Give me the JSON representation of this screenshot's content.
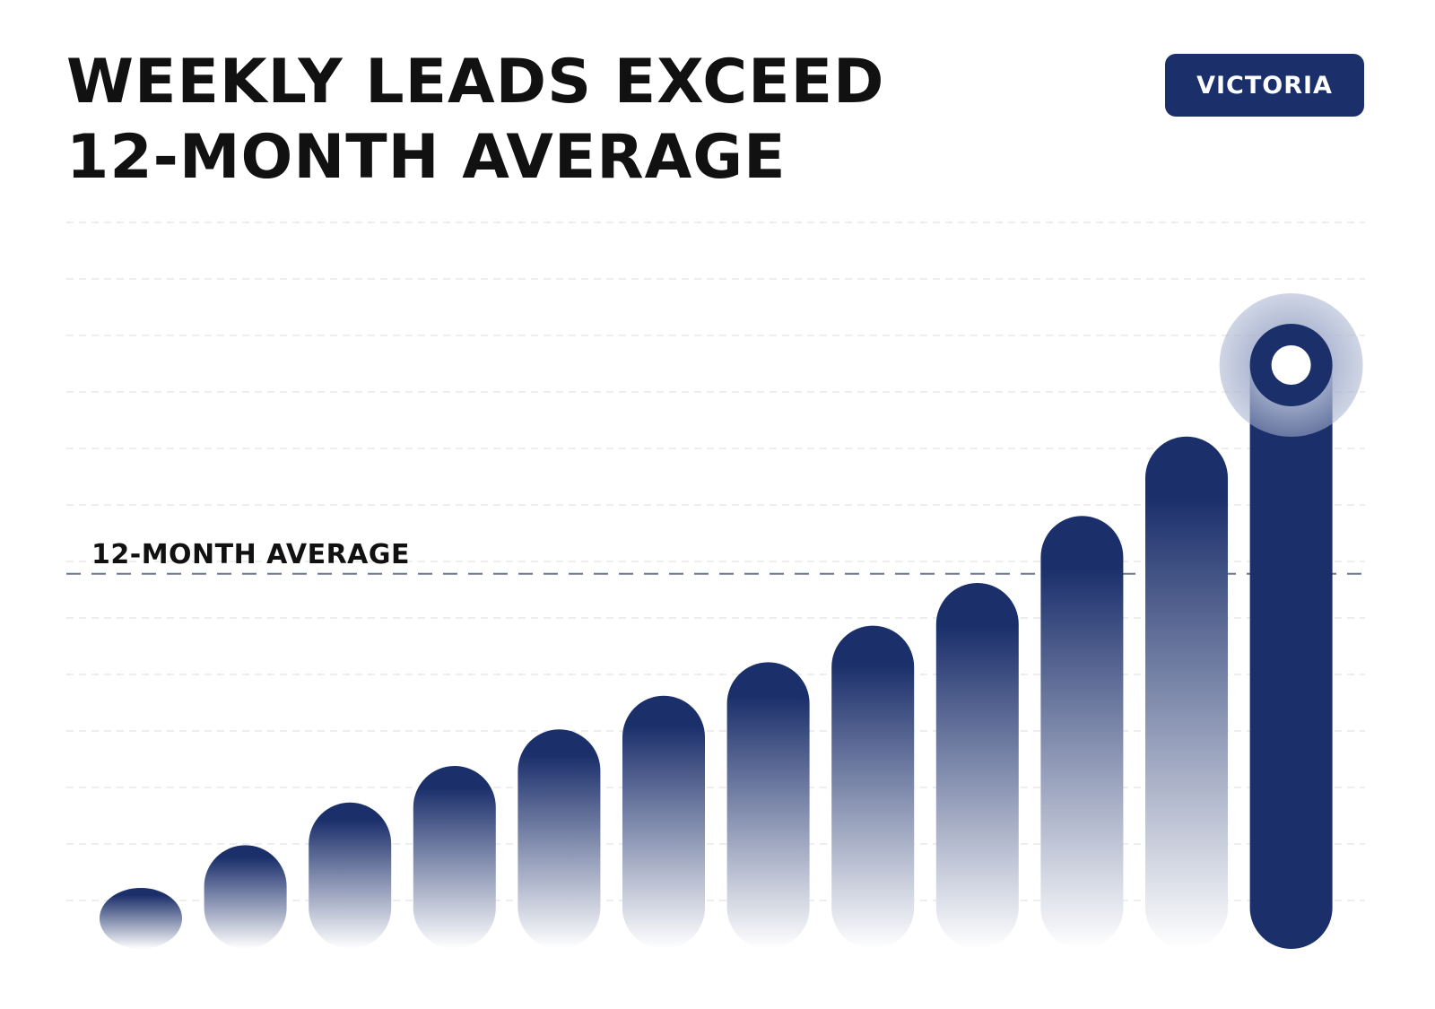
{
  "title_lines": [
    "WEEKLY LEADS EXCEED",
    "12-MONTH AVERAGE"
  ],
  "badge": {
    "label": "VICTORIA"
  },
  "colors": {
    "accent": "#1b2f6b",
    "bar_top": "#1b2f6b",
    "bar_bottom": "#ffffff",
    "grid": "#dddddd",
    "average_line": "#6b7791",
    "highlight_halo": "#a8b3cf"
  },
  "chart_data": {
    "type": "bar",
    "title": "WEEKLY LEADS EXCEED 12-MONTH AVERAGE",
    "categories": [
      "",
      "",
      "",
      "",
      "",
      "",
      "",
      "",
      "",
      "",
      "",
      ""
    ],
    "values": [
      1.0,
      1.7,
      2.4,
      3.0,
      3.6,
      4.15,
      4.7,
      5.3,
      6.0,
      7.1,
      8.4,
      10.25
    ],
    "reference_line": {
      "label": "12-MONTH AVERAGE",
      "value": 6.15
    },
    "highlight_index": 11,
    "ylim": [
      0,
      11
    ],
    "xlabel": "",
    "ylabel": "",
    "grid": true,
    "legend": "none"
  }
}
